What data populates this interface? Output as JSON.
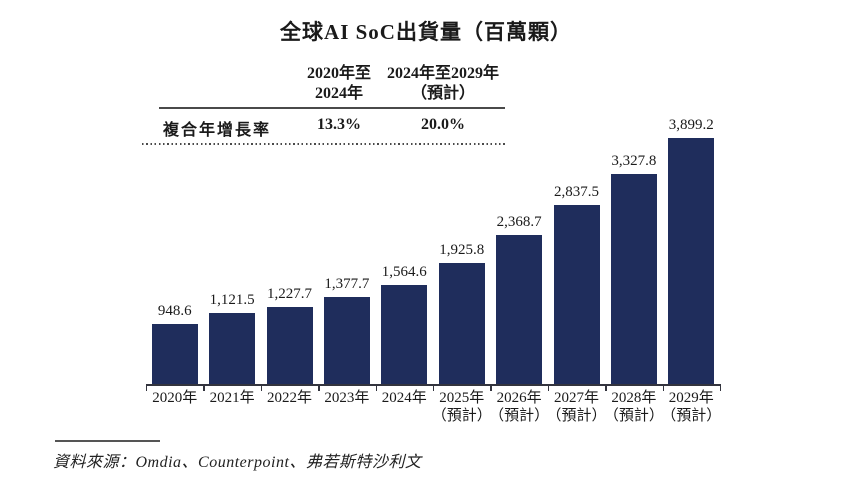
{
  "title": "全球AI SoC出貨量（百萬顆）",
  "cagr_table": {
    "row_label": "複合年增長率",
    "columns": [
      {
        "label_line1": "2020年至",
        "label_line2": "2024年",
        "value": "13.3%"
      },
      {
        "label_line1": "2024年至2029年",
        "label_line2": "（預計）",
        "value": "20.0%"
      }
    ]
  },
  "chart_data": {
    "type": "bar",
    "title": "全球AI SoC出貨量（百萬顆）",
    "unit": "百萬顆",
    "categories": [
      {
        "year": "2020年",
        "note": ""
      },
      {
        "year": "2021年",
        "note": ""
      },
      {
        "year": "2022年",
        "note": ""
      },
      {
        "year": "2023年",
        "note": ""
      },
      {
        "year": "2024年",
        "note": ""
      },
      {
        "year": "2025年",
        "note": "（預計）"
      },
      {
        "year": "2026年",
        "note": "（預計）"
      },
      {
        "year": "2027年",
        "note": "（預計）"
      },
      {
        "year": "2028年",
        "note": "（預計）"
      },
      {
        "year": "2029年",
        "note": "（預計）"
      }
    ],
    "values": [
      948.6,
      1121.5,
      1227.7,
      1377.7,
      1564.6,
      1925.8,
      2368.7,
      2837.5,
      3327.8,
      3899.2
    ],
    "value_labels": [
      "948.6",
      "1,121.5",
      "1,227.7",
      "1,377.7",
      "1,564.6",
      "1,925.8",
      "2,368.7",
      "2,837.5",
      "3,327.8",
      "3,899.2"
    ],
    "annotations": {
      "cagr_2020_2024": "13.3%",
      "cagr_2024_2029": "20.0%"
    },
    "bar_color": "#1f2d5c",
    "ylim": [
      0,
      3899.2
    ],
    "grid": false,
    "legend": null,
    "xlabel": "",
    "ylabel": ""
  },
  "source": {
    "text": "資料來源：Omdia、Counterpoint、弗若斯特沙利文"
  }
}
